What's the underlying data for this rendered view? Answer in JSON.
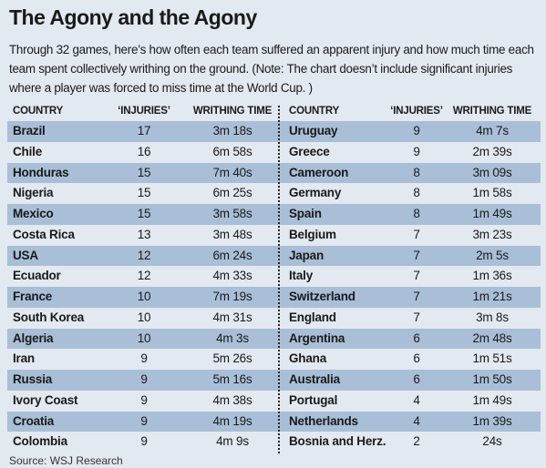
{
  "header": {
    "title": "The Agony and the Agony",
    "intro": "Through 32 games, here’s how often each team suffered an apparent injury and how much time each team spent collectively writhing on the ground. (Note: The chart doesn’t include significant injuries where a player was forced to miss time at the World Cup. )"
  },
  "table": {
    "left": {
      "columns": [
        "COUNTRY",
        "‘INJURIES’",
        "WRITHING TIME"
      ],
      "rows": [
        [
          "Brazil",
          17,
          "3m 18s"
        ],
        [
          "Chile",
          16,
          "6m 58s"
        ],
        [
          "Honduras",
          15,
          "7m 40s"
        ],
        [
          "Nigeria",
          15,
          "6m 25s"
        ],
        [
          "Mexico",
          15,
          "3m 58s"
        ],
        [
          "Costa Rica",
          13,
          "3m 48s"
        ],
        [
          "USA",
          12,
          "6m 24s"
        ],
        [
          "Ecuador",
          12,
          "4m 33s"
        ],
        [
          "France",
          10,
          "7m 19s"
        ],
        [
          "South Korea",
          10,
          "4m 31s"
        ],
        [
          "Algeria",
          10,
          "4m 3s"
        ],
        [
          "Iran",
          9,
          "5m 26s"
        ],
        [
          "Russia",
          9,
          "5m 16s"
        ],
        [
          "Ivory Coast",
          9,
          "4m 38s"
        ],
        [
          "Croatia",
          9,
          "4m 19s"
        ],
        [
          "Colombia",
          9,
          "4m 9s"
        ]
      ]
    },
    "right": {
      "columns": [
        "COUNTRY",
        "‘INJURIES’",
        "WRITHING TIME"
      ],
      "rows": [
        [
          "Uruguay",
          9,
          "4m 7s"
        ],
        [
          "Greece",
          9,
          "2m 39s"
        ],
        [
          "Cameroon",
          8,
          "3m 09s"
        ],
        [
          "Germany",
          8,
          "1m 58s"
        ],
        [
          "Spain",
          8,
          "1m 49s"
        ],
        [
          "Belgium",
          7,
          "3m 23s"
        ],
        [
          "Japan",
          7,
          "2m 5s"
        ],
        [
          "Italy",
          7,
          "1m 36s"
        ],
        [
          "Switzerland",
          7,
          "1m 21s"
        ],
        [
          "England",
          7,
          "3m 8s"
        ],
        [
          "Argentina",
          6,
          "2m 48s"
        ],
        [
          "Ghana",
          6,
          "1m 51s"
        ],
        [
          "Australia",
          6,
          "1m 50s"
        ],
        [
          "Portugal",
          4,
          "1m 49s"
        ],
        [
          "Netherlands",
          4,
          "1m 39s"
        ],
        [
          "Bosnia and Herz.",
          2,
          "24s"
        ]
      ]
    }
  },
  "footer": {
    "source": "Source: WSJ Research"
  }
}
